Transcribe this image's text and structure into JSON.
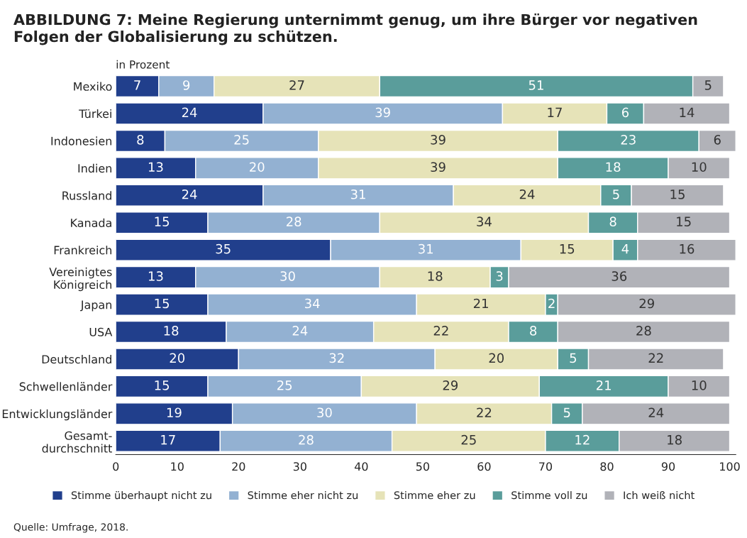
{
  "chart_data": {
    "type": "bar",
    "orientation": "horizontal",
    "stacked": true,
    "title": "ABBILDUNG 7: Meine Regierung unternimmt genug, um ihre Bürger vor negativen Folgen der Globalisierung zu schützen.",
    "ylabel": "in Prozent",
    "categories": [
      "Mexiko",
      "Türkei",
      "Indonesien",
      "Indien",
      "Russland",
      "Kanada",
      "Frankreich",
      "Vereinigtes\nKönigreich",
      "Japan",
      "USA",
      "Deutschland",
      "Schwellenländer",
      "Entwicklungsländer",
      "Gesamt-\ndurchschnitt"
    ],
    "series": [
      {
        "name": "Stimme überhaupt nicht zu",
        "color": "#213f8c",
        "values": [
          7,
          24,
          8,
          13,
          24,
          15,
          35,
          13,
          15,
          18,
          20,
          15,
          19,
          17
        ]
      },
      {
        "name": "Stimme eher nicht zu",
        "color": "#93b1d2",
        "values": [
          9,
          39,
          25,
          20,
          31,
          28,
          31,
          30,
          34,
          24,
          32,
          25,
          30,
          28
        ]
      },
      {
        "name": "Stimme eher zu",
        "color": "#e6e3b8",
        "values": [
          27,
          17,
          39,
          39,
          24,
          34,
          15,
          18,
          21,
          22,
          20,
          29,
          22,
          25
        ]
      },
      {
        "name": "Stimme voll zu",
        "color": "#5a9d9b",
        "values": [
          51,
          6,
          23,
          18,
          5,
          8,
          4,
          3,
          2,
          8,
          5,
          21,
          5,
          12
        ]
      },
      {
        "name": "Ich weiß nicht",
        "color": "#b1b2b8",
        "values": [
          5,
          14,
          6,
          10,
          15,
          15,
          16,
          36,
          29,
          28,
          22,
          10,
          24,
          18
        ]
      }
    ],
    "xlim": [
      0,
      101
    ],
    "xticks": [
      0,
      10,
      20,
      30,
      40,
      50,
      60,
      70,
      80,
      90,
      100
    ],
    "data_labels": true,
    "legend": "bottom",
    "grid": false,
    "annotations": [
      "Quelle: Umfrage, 2018."
    ]
  }
}
